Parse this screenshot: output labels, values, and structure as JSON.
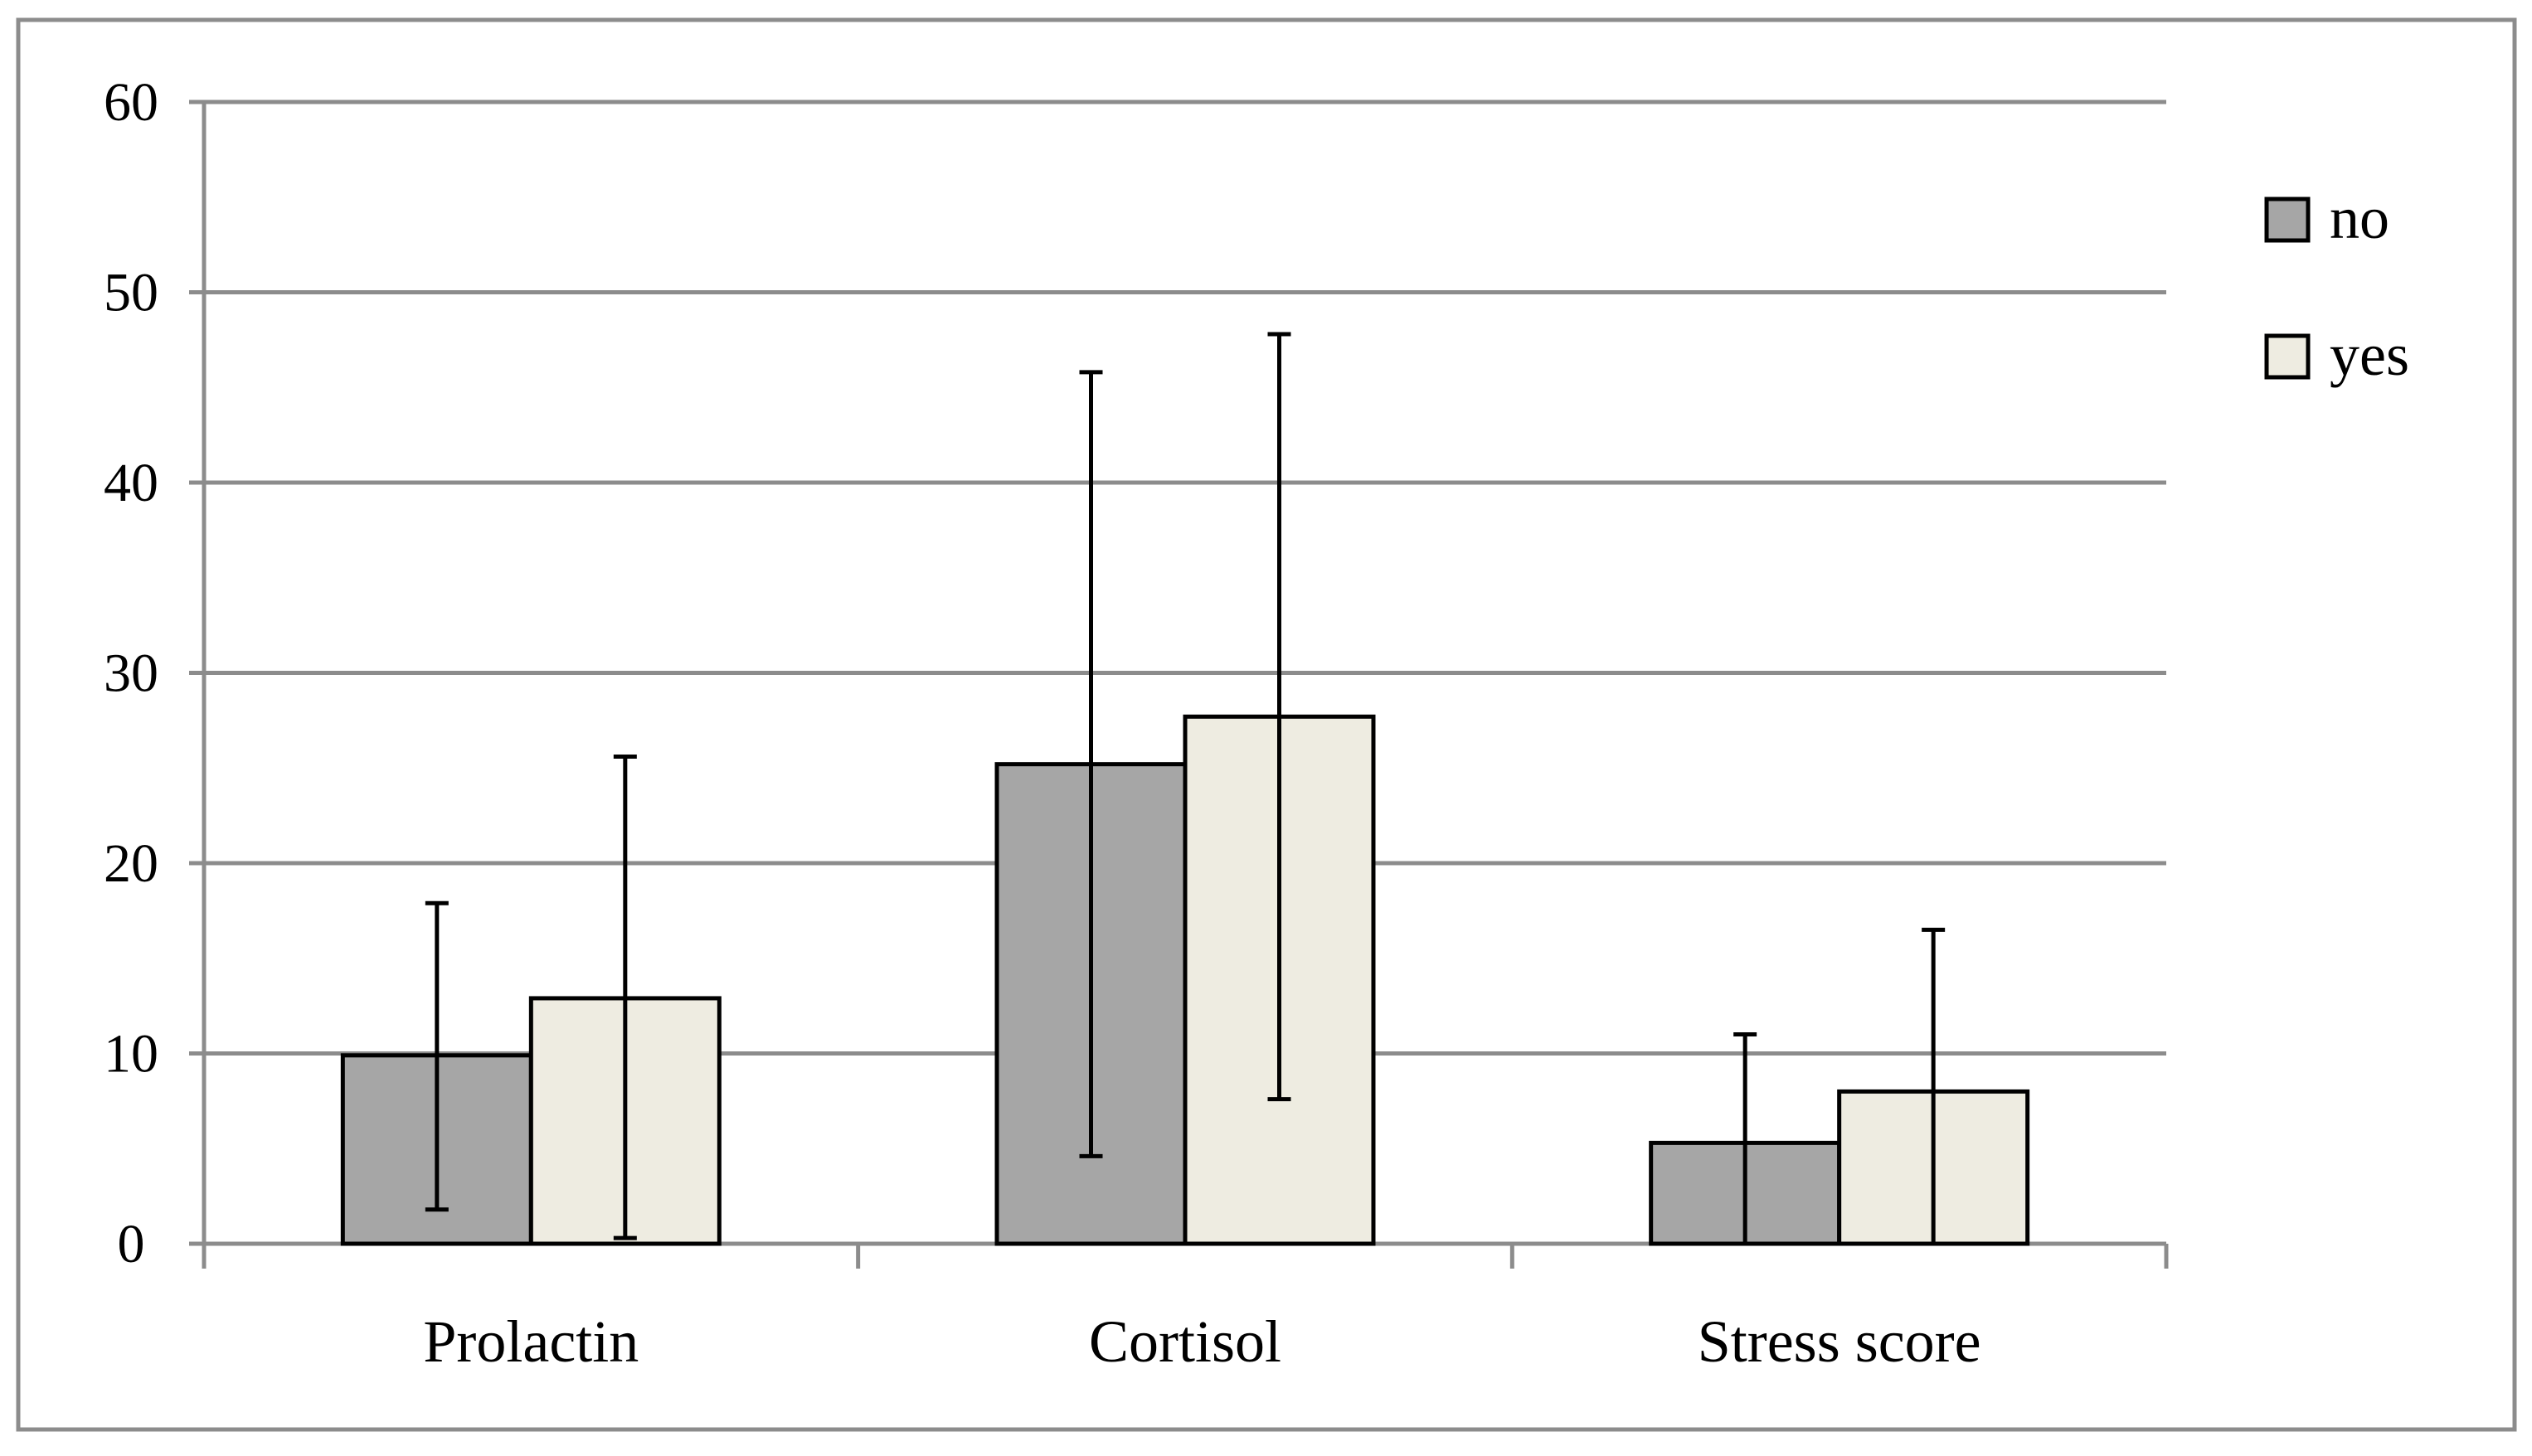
{
  "chart_data": {
    "type": "bar",
    "title": "",
    "xlabel": "",
    "ylabel": "",
    "categories": [
      "Prolactin",
      "Cortisol",
      "Stress score"
    ],
    "series": [
      {
        "name": "no",
        "values": [
          9.9,
          25.2,
          5.3
        ],
        "error_low": [
          1.8,
          4.6,
          0
        ],
        "error_high": [
          17.9,
          45.8,
          11.0
        ]
      },
      {
        "name": "yes",
        "values": [
          12.9,
          27.7,
          8.0
        ],
        "error_low": [
          0.3,
          7.6,
          0
        ],
        "error_high": [
          25.6,
          47.8,
          16.5
        ]
      }
    ],
    "ylim": [
      0,
      60
    ],
    "yticks": [
      "0",
      "10",
      "20",
      "30",
      "40",
      "50",
      "60"
    ],
    "grid": true,
    "legend_position": "right",
    "colors": {
      "no": "#a6a6a6",
      "yes": "#eeece1",
      "grid": "#8c8c8c",
      "axis": "#8c8c8c",
      "frame": "#8c8c8c",
      "bar_stroke": "#000000",
      "error_bar": "#000000"
    }
  }
}
